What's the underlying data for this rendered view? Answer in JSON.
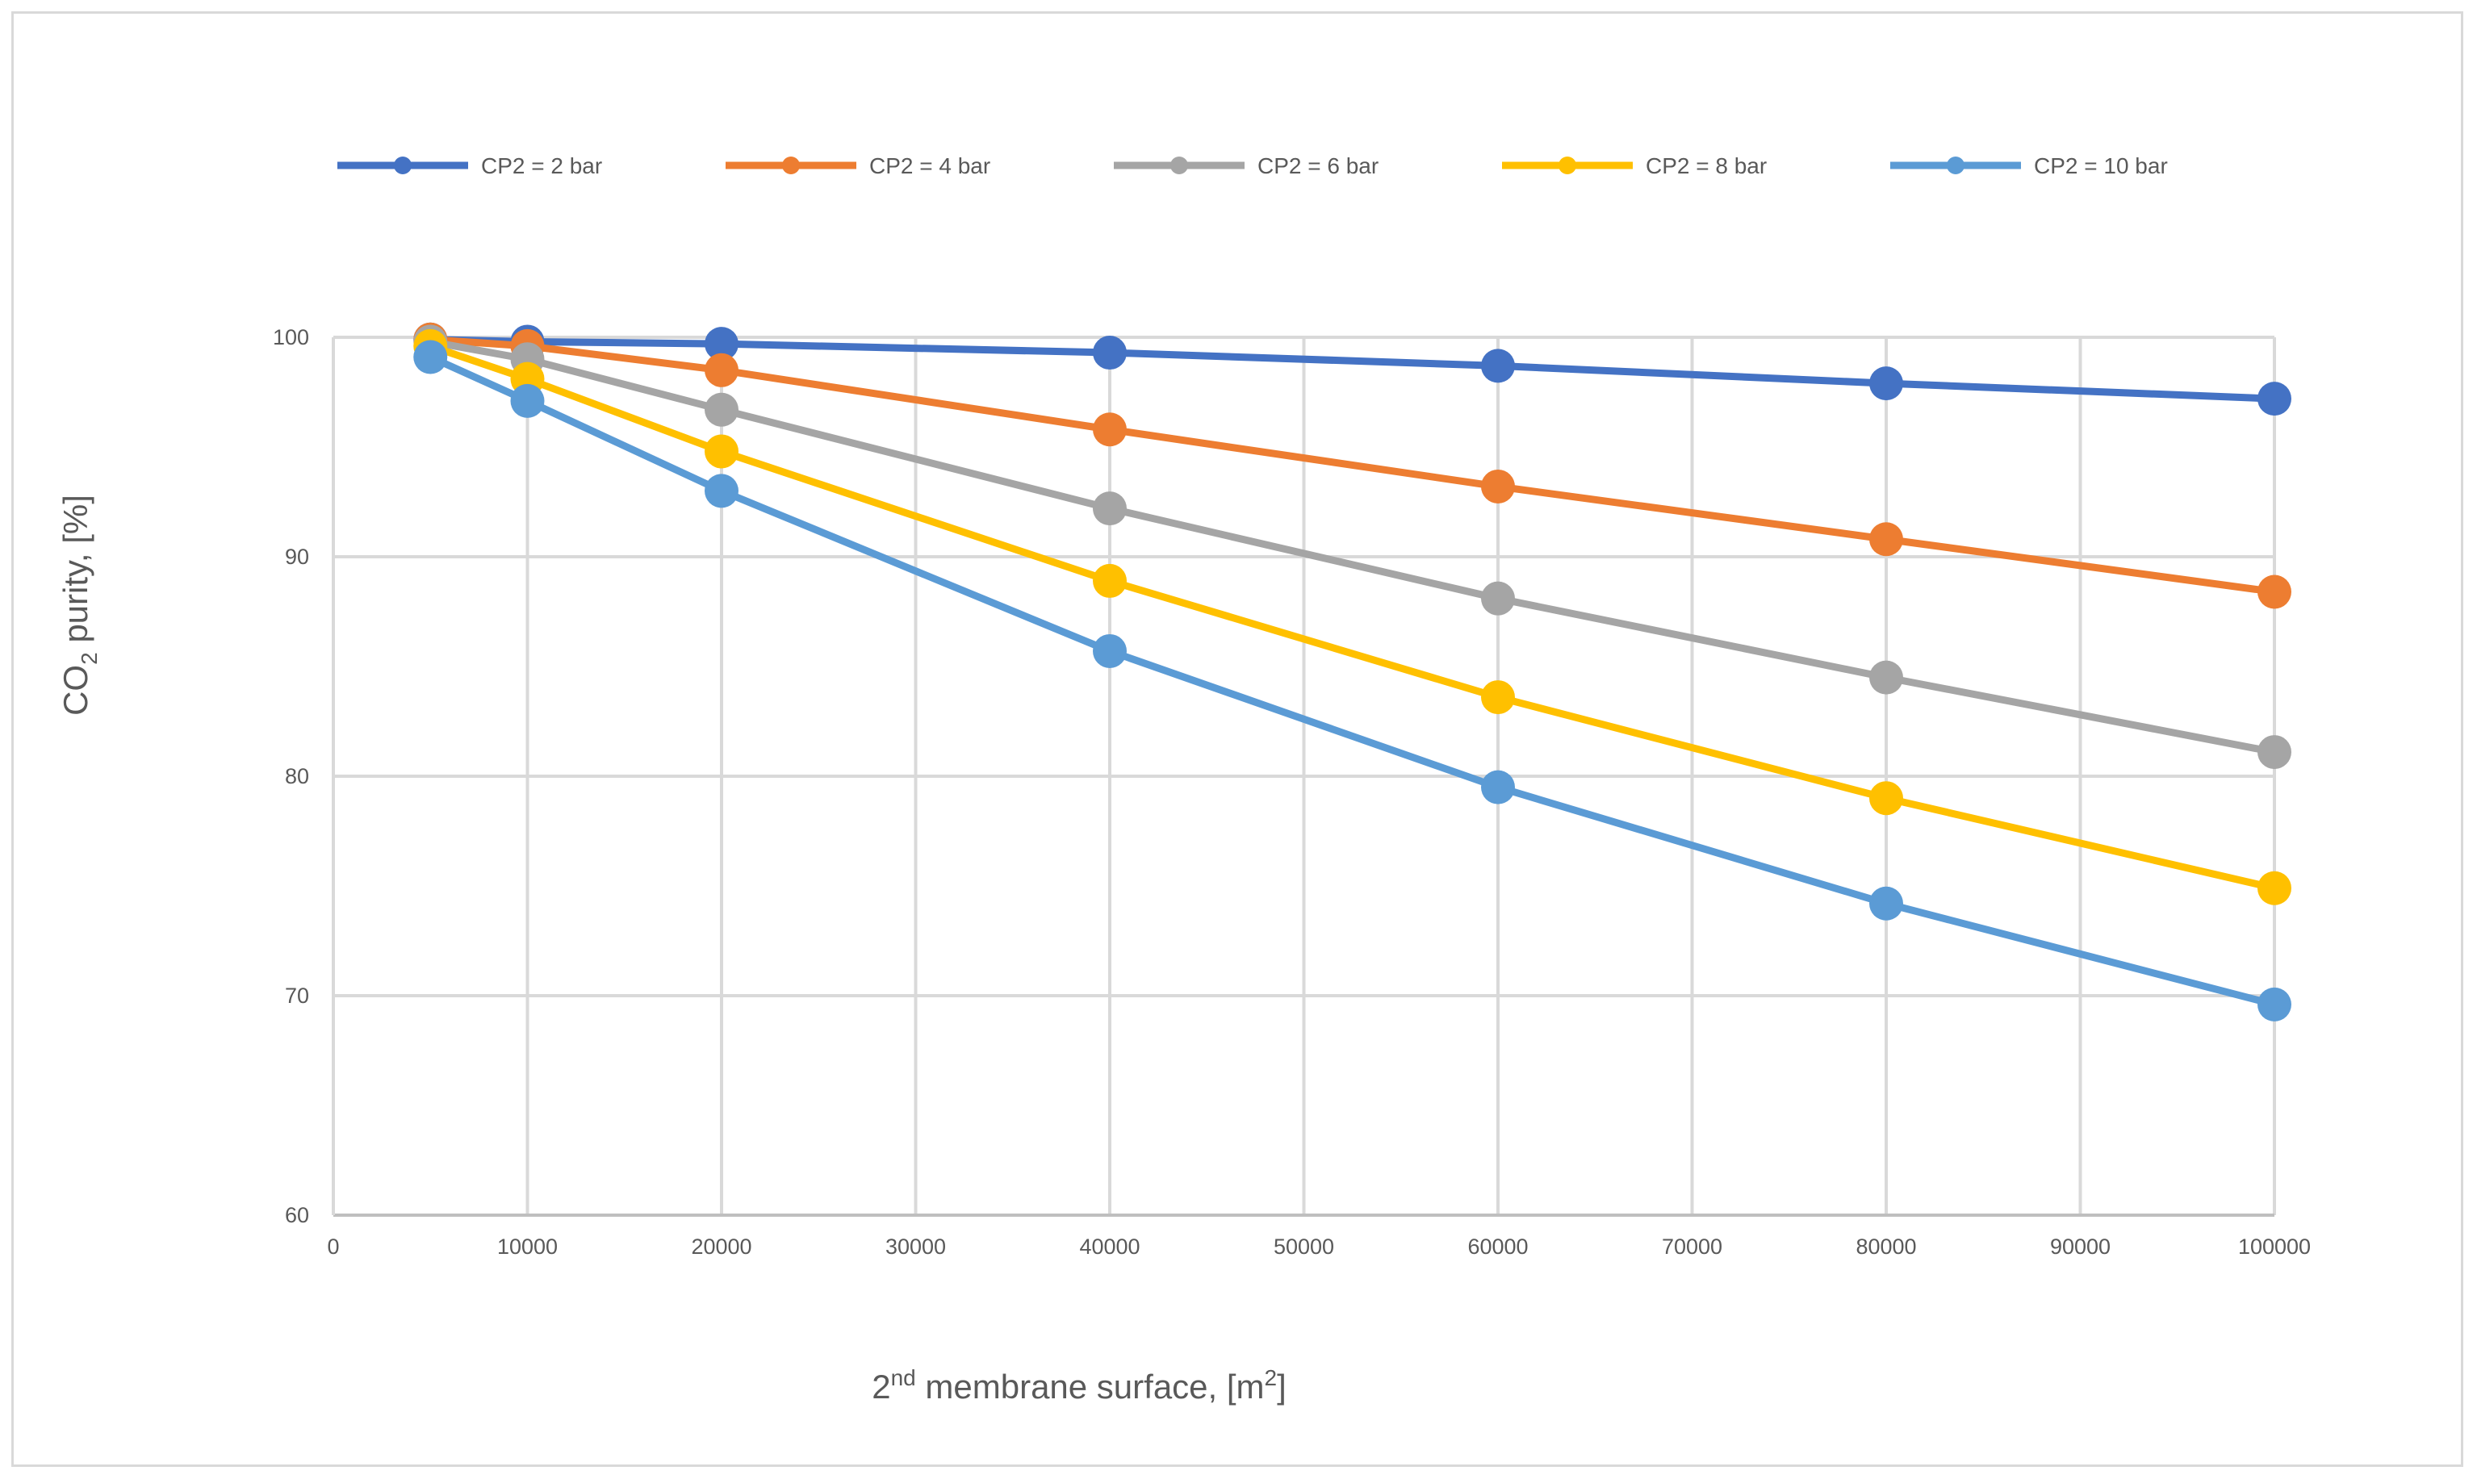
{
  "chart_data": {
    "type": "line",
    "title": "",
    "xlabel": {
      "pre": "2",
      "sup1": "nd",
      "mid": " membrane surface, [m",
      "sup2": "2",
      "post": "]"
    },
    "ylabel": {
      "pre": "CO",
      "sub": "2",
      "post": " purity, [%]"
    },
    "xlim": [
      0,
      100000
    ],
    "ylim": [
      60,
      100
    ],
    "xticks": [
      0,
      10000,
      20000,
      30000,
      40000,
      50000,
      60000,
      70000,
      80000,
      90000,
      100000
    ],
    "yticks": [
      60,
      70,
      80,
      90,
      100
    ],
    "grid": true,
    "legend_position": "top",
    "x": [
      5000,
      10000,
      20000,
      40000,
      60000,
      80000,
      100000
    ],
    "series": [
      {
        "name": "CP2 = 2 bar",
        "color": "#4472C4",
        "values": [
          99.9,
          99.8,
          99.7,
          99.3,
          98.7,
          97.9,
          97.2
        ]
      },
      {
        "name": "CP2 = 4 bar",
        "color": "#ED7D31",
        "values": [
          99.9,
          99.6,
          98.5,
          95.8,
          93.2,
          90.8,
          88.4
        ]
      },
      {
        "name": "CP2 = 6 bar",
        "color": "#A5A5A5",
        "values": [
          99.8,
          99.0,
          96.7,
          92.2,
          88.1,
          84.5,
          81.1
        ]
      },
      {
        "name": "CP2 = 8 bar",
        "color": "#FFC000",
        "values": [
          99.6,
          98.1,
          94.8,
          88.9,
          83.6,
          79.0,
          74.9
        ]
      },
      {
        "name": "CP2 = 10 bar",
        "color": "#5B9BD5",
        "values": [
          99.1,
          97.1,
          93.0,
          85.7,
          79.5,
          74.2,
          69.6
        ]
      }
    ]
  }
}
